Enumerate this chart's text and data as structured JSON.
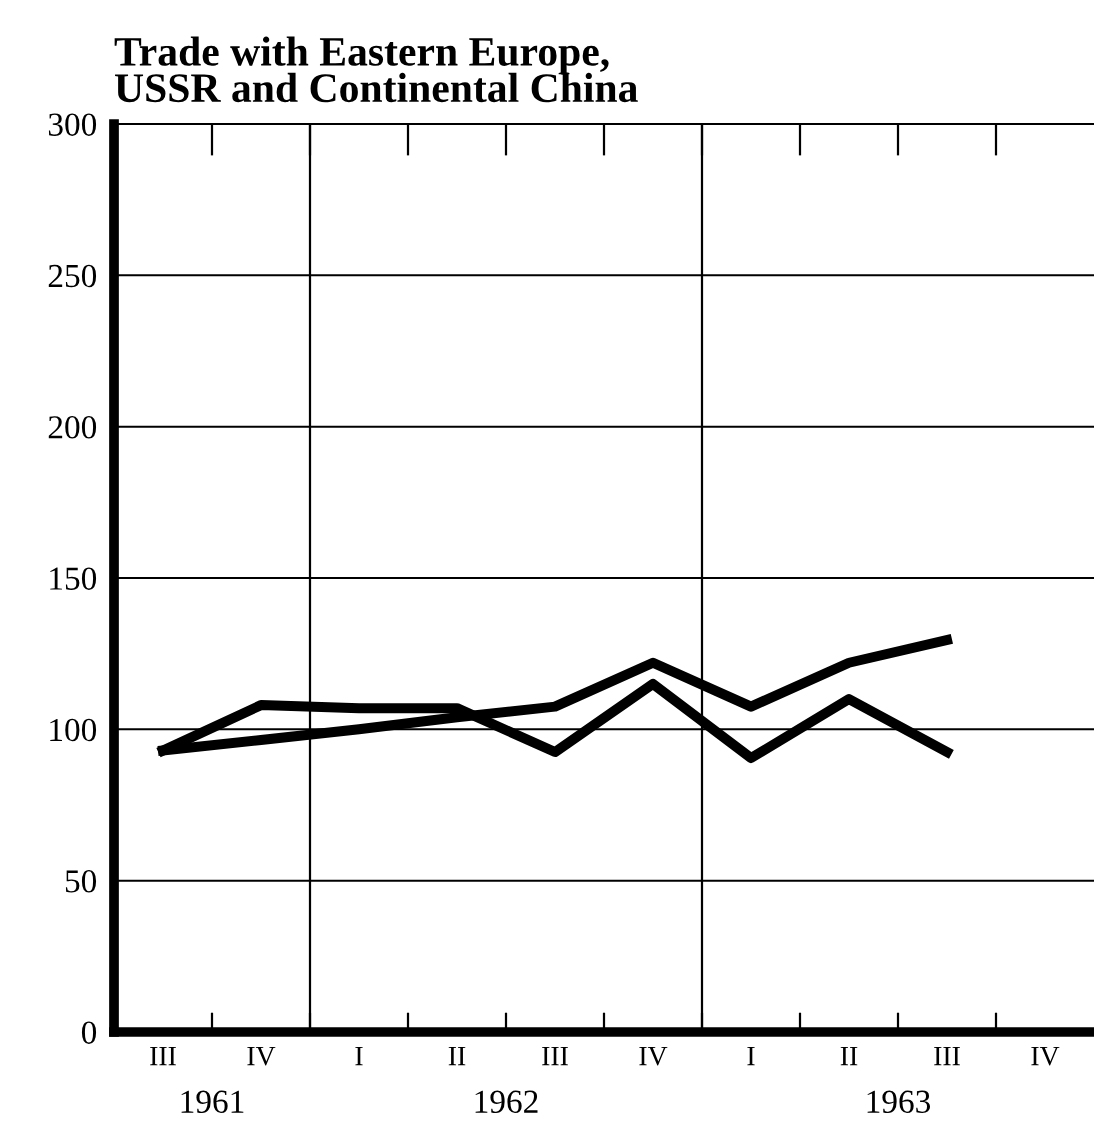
{
  "chart_data": {
    "type": "line",
    "title": "Trade with Eastern Europe,\nUSSR and Continental China",
    "categories": [
      "III",
      "IV",
      "I",
      "II",
      "III",
      "IV",
      "I",
      "II",
      "III",
      "IV"
    ],
    "series": [
      {
        "color": "#000000",
        "values": [
          93,
          96.5,
          100,
          104,
          107.5,
          122,
          107.5,
          122,
          129.5,
          null
        ]
      },
      {
        "color": "#000000",
        "values": [
          93,
          108,
          107,
          107,
          92.5,
          115,
          90.5,
          110,
          92.5,
          null
        ]
      }
    ],
    "ylim": [
      0,
      300
    ],
    "yticks": [
      0,
      50,
      100,
      150,
      200,
      250,
      300
    ],
    "grid": "y",
    "annotations": [
      "1961",
      "1962",
      "1963"
    ],
    "line_style": "solid",
    "marker": "none",
    "legend": false
  }
}
